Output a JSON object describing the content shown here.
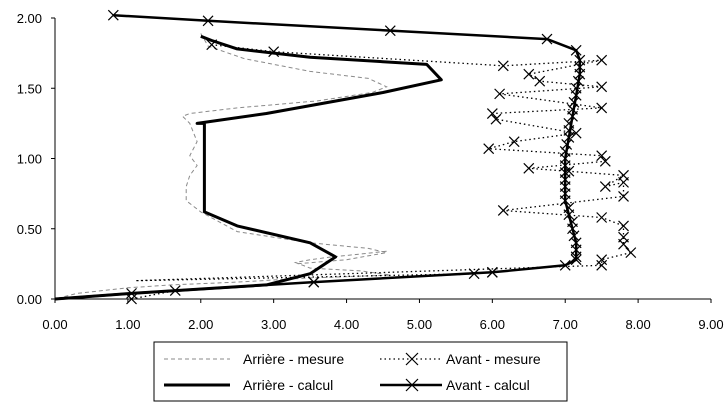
{
  "chart_data": {
    "type": "line",
    "title": "",
    "xlabel": "",
    "ylabel": "",
    "xlim": [
      0,
      9
    ],
    "ylim": [
      0,
      2
    ],
    "x_ticks": [
      "0.00",
      "1.00",
      "2.00",
      "3.00",
      "4.00",
      "5.00",
      "6.00",
      "7.00",
      "8.00",
      "9.00"
    ],
    "y_ticks": [
      "0.00",
      "0.50",
      "1.00",
      "1.50",
      "2.00"
    ],
    "grid": false,
    "legend_position": "bottom",
    "series": [
      {
        "name": "Arrière - mesure",
        "style": "thin dashed gray",
        "color": "#8a8a8a",
        "marker": "none",
        "points": [
          [
            4.55,
            0.34
          ],
          [
            4.2,
            0.32
          ],
          [
            3.8,
            0.3
          ],
          [
            3.5,
            0.28
          ],
          [
            3.3,
            0.26
          ],
          [
            3.5,
            0.22
          ],
          [
            4.2,
            0.2
          ],
          [
            4.6,
            0.17
          ],
          [
            3.5,
            0.15
          ],
          [
            2.5,
            0.12
          ],
          [
            1.6,
            0.1
          ],
          [
            1.0,
            0.08
          ],
          [
            0.3,
            0.04
          ],
          [
            0.0,
            0.0
          ]
        ],
        "segments": [
          [
            [
              2.0,
              1.89
            ],
            [
              2.1,
              1.8
            ],
            [
              2.6,
              1.71
            ],
            [
              3.5,
              1.62
            ],
            [
              4.3,
              1.57
            ],
            [
              4.55,
              1.51
            ],
            [
              4.35,
              1.47
            ],
            [
              3.6,
              1.41
            ],
            [
              2.5,
              1.36
            ],
            [
              1.85,
              1.32
            ],
            [
              1.75,
              1.3
            ],
            [
              1.85,
              1.25
            ],
            [
              1.95,
              1.12
            ],
            [
              1.85,
              1.02
            ],
            [
              1.95,
              0.95
            ],
            [
              1.85,
              0.88
            ],
            [
              1.8,
              0.8
            ],
            [
              1.8,
              0.7
            ],
            [
              2.0,
              0.62
            ],
            [
              2.5,
              0.48
            ],
            [
              3.5,
              0.4
            ],
            [
              4.3,
              0.36
            ],
            [
              4.55,
              0.33
            ],
            [
              4.0,
              0.28
            ],
            [
              3.3,
              0.25
            ]
          ]
        ]
      },
      {
        "name": "Avant - mesure",
        "style": "dotted with x markers",
        "color": "#000000",
        "marker": "x",
        "points": [
          [
            1.05,
            0.0
          ],
          [
            1.65,
            0.06
          ],
          [
            3.55,
            0.12
          ],
          [
            5.75,
            0.18
          ],
          [
            6.0,
            0.19
          ],
          [
            7.5,
            0.24
          ],
          [
            7.5,
            0.28
          ],
          [
            7.9,
            0.33
          ],
          [
            7.8,
            0.39
          ],
          [
            7.8,
            0.44
          ],
          [
            7.8,
            0.52
          ],
          [
            7.5,
            0.58
          ],
          [
            6.15,
            0.63
          ],
          [
            7.8,
            0.73
          ],
          [
            7.8,
            0.83
          ],
          [
            7.55,
            0.8
          ],
          [
            7.8,
            0.88
          ],
          [
            7.05,
            0.91
          ],
          [
            6.5,
            0.93
          ],
          [
            7.55,
            0.98
          ],
          [
            7.5,
            1.02
          ],
          [
            5.95,
            1.07
          ],
          [
            6.3,
            1.12
          ],
          [
            7.15,
            1.18
          ],
          [
            6.05,
            1.28
          ],
          [
            6.0,
            1.32
          ],
          [
            7.5,
            1.36
          ],
          [
            6.1,
            1.46
          ],
          [
            7.5,
            1.51
          ],
          [
            6.65,
            1.55
          ],
          [
            6.5,
            1.6
          ],
          [
            7.5,
            1.7
          ],
          [
            6.15,
            1.66
          ],
          [
            3.0,
            1.76
          ],
          [
            2.15,
            1.81
          ]
        ],
        "order_note": "",
        "path": [
          [
            1.05,
            0.0
          ],
          [
            1.65,
            0.06
          ],
          [
            3.55,
            0.12
          ],
          [
            5.75,
            0.18
          ],
          [
            1.1,
            0.13
          ],
          [
            7.5,
            0.24
          ],
          [
            7.5,
            0.28
          ],
          [
            7.9,
            0.33
          ],
          [
            7.8,
            0.39
          ],
          [
            7.8,
            0.44
          ],
          [
            7.8,
            0.52
          ],
          [
            7.5,
            0.58
          ],
          [
            6.15,
            0.63
          ],
          [
            7.8,
            0.73
          ],
          [
            7.8,
            0.83
          ],
          [
            7.55,
            0.8
          ],
          [
            7.8,
            0.88
          ],
          [
            6.5,
            0.93
          ],
          [
            7.55,
            0.98
          ],
          [
            7.5,
            1.02
          ],
          [
            5.95,
            1.07
          ],
          [
            6.3,
            1.12
          ],
          [
            7.15,
            1.18
          ],
          [
            6.05,
            1.28
          ],
          [
            6.0,
            1.32
          ],
          [
            7.5,
            1.36
          ],
          [
            6.1,
            1.46
          ],
          [
            7.5,
            1.51
          ],
          [
            6.65,
            1.55
          ],
          [
            6.5,
            1.6
          ],
          [
            7.5,
            1.7
          ],
          [
            6.15,
            1.66
          ],
          [
            3.0,
            1.76
          ],
          [
            2.15,
            1.81
          ]
        ]
      },
      {
        "name": "Arrière - calcul",
        "style": "thick solid",
        "color": "#000000",
        "marker": "none",
        "points": [
          [
            0.0,
            0.0
          ],
          [
            1.05,
            0.04
          ],
          [
            1.65,
            0.06
          ],
          [
            2.9,
            0.1
          ],
          [
            3.5,
            0.18
          ],
          [
            3.85,
            0.3
          ],
          [
            3.5,
            0.4
          ],
          [
            2.5,
            0.52
          ],
          [
            2.05,
            0.62
          ],
          [
            2.05,
            0.75
          ],
          [
            2.05,
            1.0
          ],
          [
            2.05,
            1.25
          ],
          [
            1.95,
            1.25
          ],
          [
            2.9,
            1.32
          ],
          [
            4.5,
            1.47
          ],
          [
            5.3,
            1.56
          ],
          [
            5.1,
            1.67
          ],
          [
            3.5,
            1.72
          ],
          [
            2.5,
            1.78
          ],
          [
            2.15,
            1.84
          ],
          [
            2.0,
            1.87
          ]
        ]
      },
      {
        "name": "Avant - calcul",
        "style": "thick solid with x markers",
        "color": "#000000",
        "marker": "x",
        "points": [
          [
            0.0,
            0.0
          ],
          [
            1.05,
            0.04
          ],
          [
            3.55,
            0.12
          ],
          [
            6.0,
            0.19
          ],
          [
            7.0,
            0.24
          ],
          [
            7.15,
            0.28
          ],
          [
            7.15,
            0.4
          ],
          [
            7.1,
            0.5
          ],
          [
            7.05,
            0.6
          ],
          [
            7.0,
            0.7
          ],
          [
            7.0,
            0.85
          ],
          [
            7.0,
            1.0
          ],
          [
            7.05,
            1.15
          ],
          [
            7.1,
            1.3
          ],
          [
            7.15,
            1.45
          ],
          [
            7.2,
            1.6
          ],
          [
            7.2,
            1.7
          ],
          [
            7.15,
            1.77
          ],
          [
            6.75,
            1.85
          ],
          [
            4.6,
            1.91
          ],
          [
            2.1,
            1.98
          ],
          [
            0.8,
            2.02
          ]
        ],
        "marker_points": [
          [
            0.8,
            2.02
          ],
          [
            2.1,
            1.98
          ],
          [
            4.6,
            1.91
          ],
          [
            6.75,
            1.85
          ],
          [
            7.15,
            1.77
          ],
          [
            7.2,
            1.7
          ],
          [
            7.2,
            1.65
          ],
          [
            7.2,
            1.6
          ],
          [
            7.18,
            1.55
          ],
          [
            7.15,
            1.5
          ],
          [
            7.15,
            1.45
          ],
          [
            7.12,
            1.4
          ],
          [
            7.1,
            1.35
          ],
          [
            7.1,
            1.3
          ],
          [
            7.05,
            1.25
          ],
          [
            7.05,
            1.2
          ],
          [
            7.05,
            1.15
          ],
          [
            7.02,
            1.1
          ],
          [
            7.0,
            1.05
          ],
          [
            7.0,
            1.0
          ],
          [
            7.0,
            0.95
          ],
          [
            7.0,
            0.9
          ],
          [
            7.0,
            0.85
          ],
          [
            7.0,
            0.8
          ],
          [
            7.0,
            0.75
          ],
          [
            7.0,
            0.7
          ],
          [
            7.05,
            0.65
          ],
          [
            7.05,
            0.6
          ],
          [
            7.1,
            0.55
          ],
          [
            7.1,
            0.5
          ],
          [
            7.12,
            0.45
          ],
          [
            7.15,
            0.4
          ],
          [
            7.15,
            0.35
          ],
          [
            7.15,
            0.3
          ],
          [
            7.15,
            0.28
          ],
          [
            7.0,
            0.24
          ],
          [
            6.0,
            0.19
          ],
          [
            3.55,
            0.12
          ],
          [
            1.05,
            0.04
          ]
        ]
      }
    ],
    "legend": [
      {
        "label": "Arrière - mesure",
        "key": "arriere-mesure"
      },
      {
        "label": "Avant - mesure",
        "key": "avant-mesure"
      },
      {
        "label": "Arrière - calcul",
        "key": "arriere-calcul"
      },
      {
        "label": "Avant - calcul",
        "key": "avant-calcul"
      }
    ]
  }
}
